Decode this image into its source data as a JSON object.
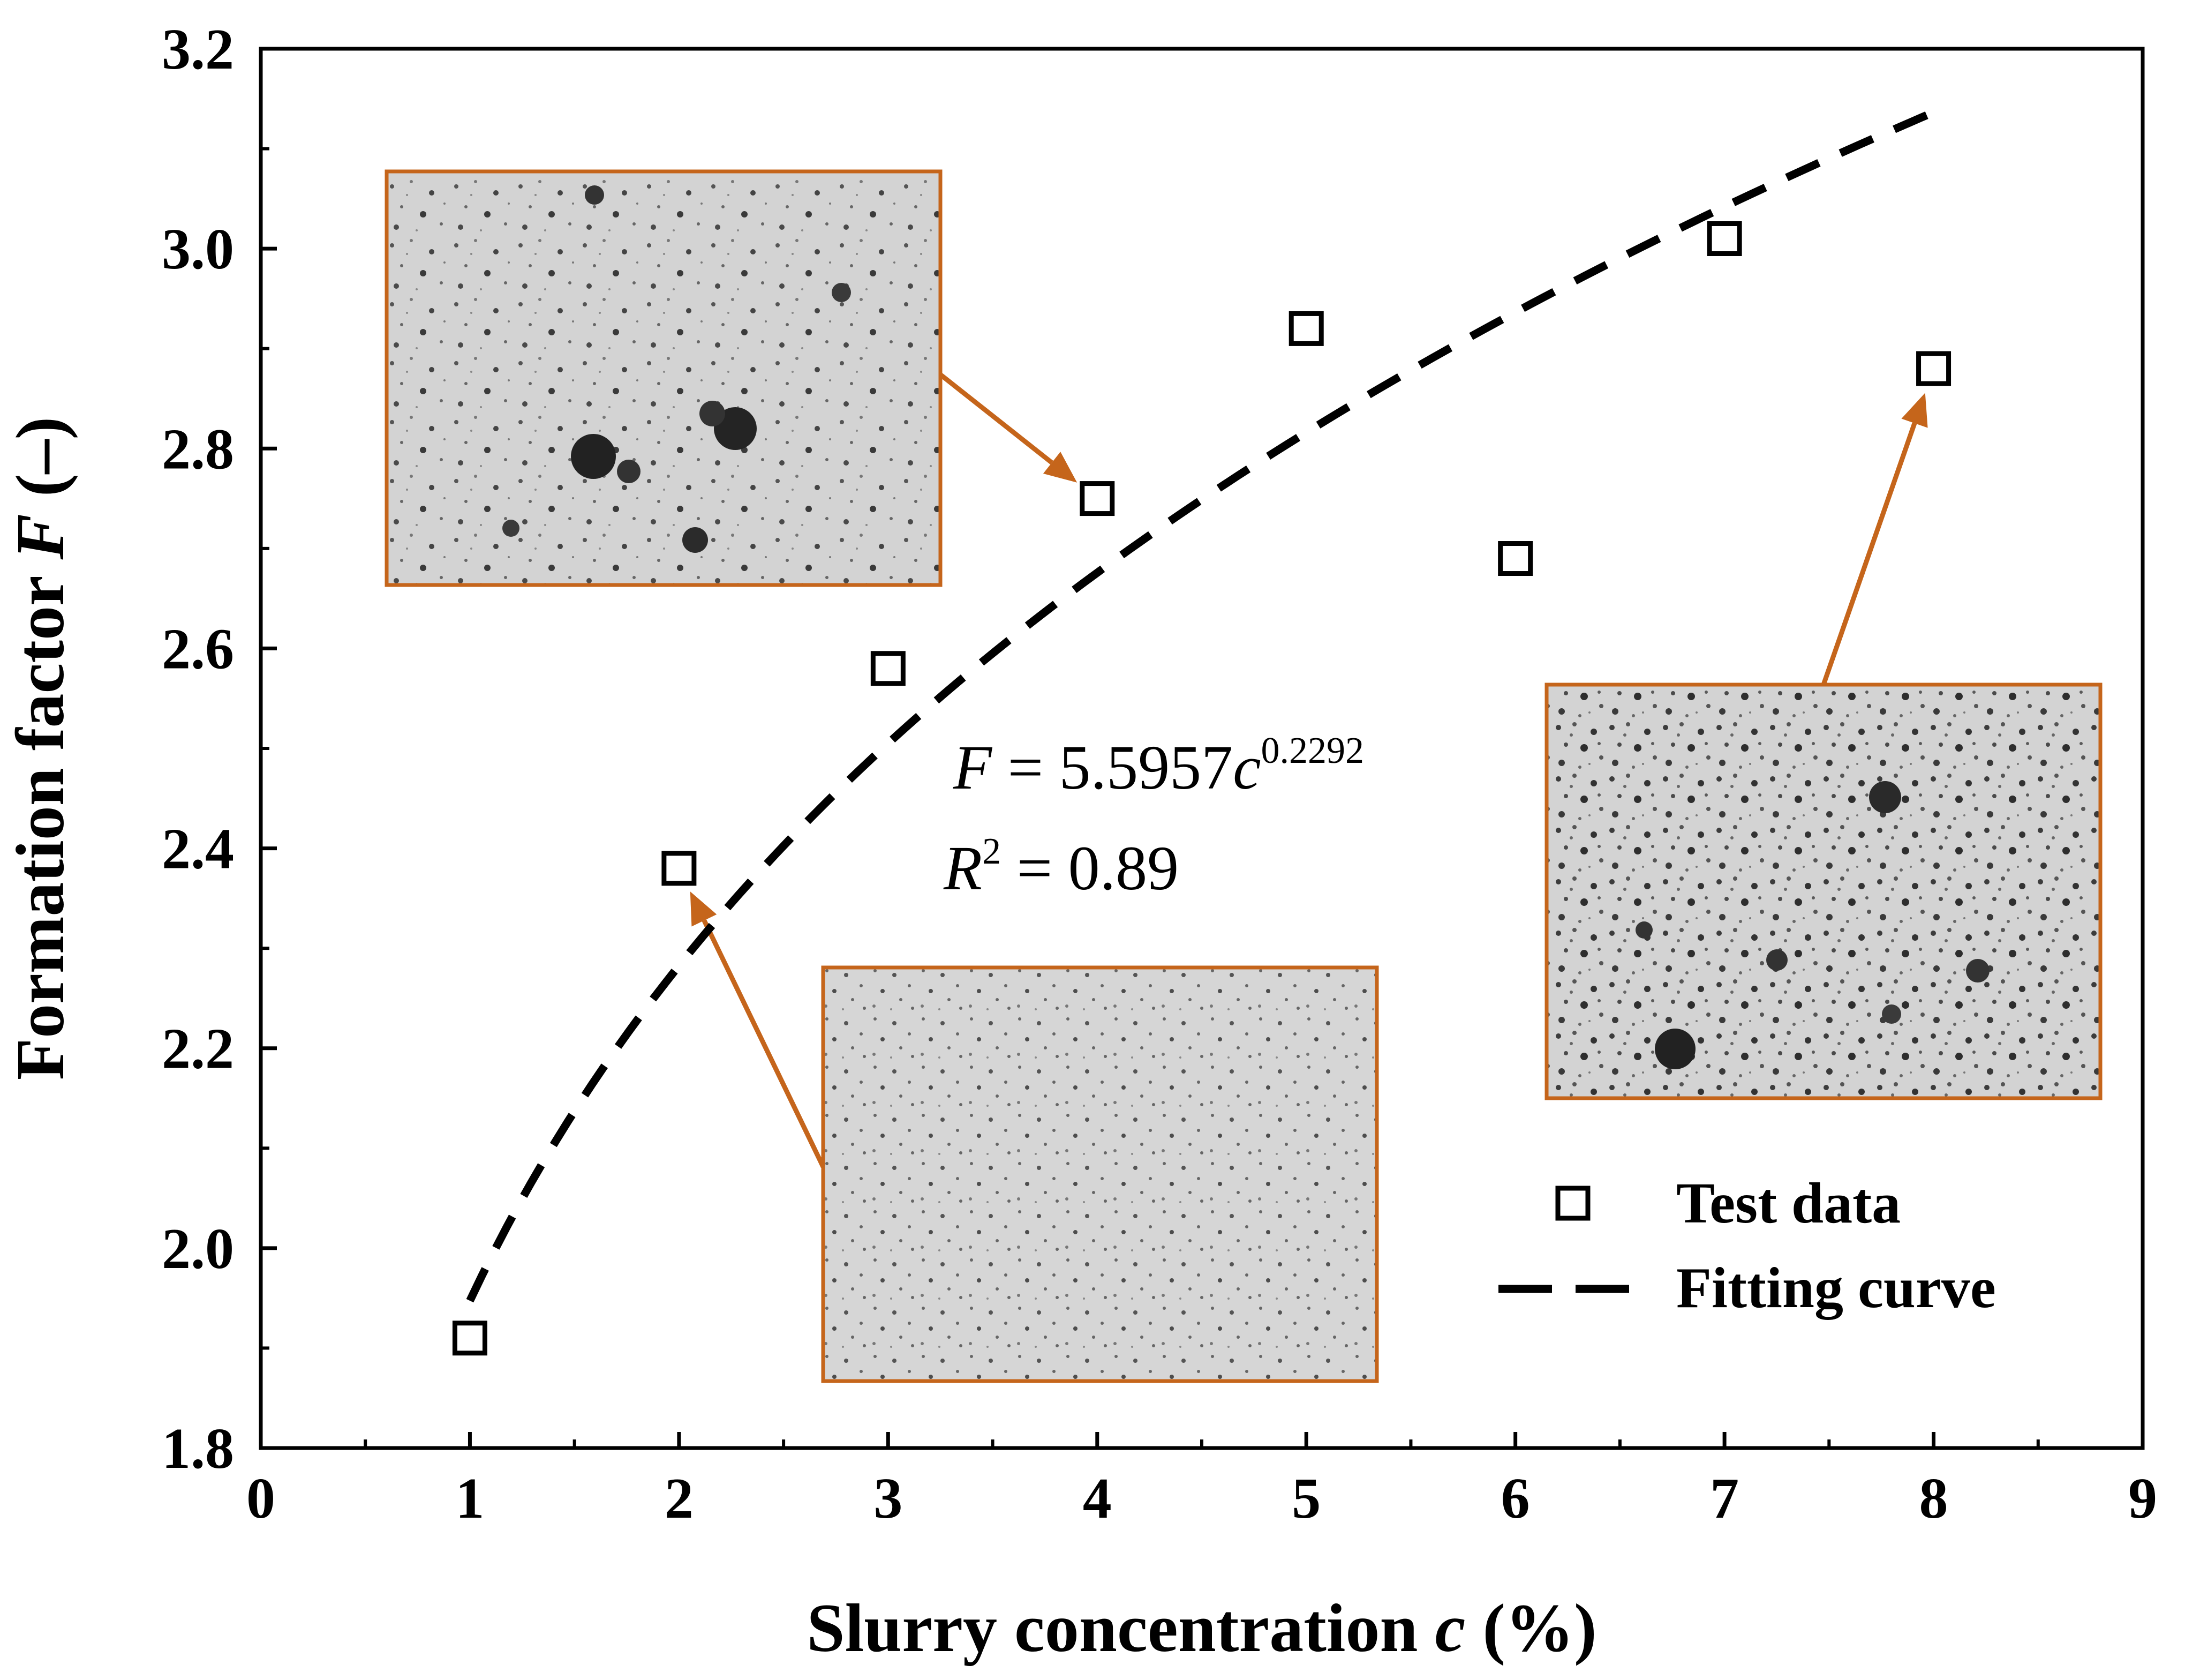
{
  "chart_data": {
    "type": "scatter",
    "xlabel": {
      "main": "Slurry concentration ",
      "var": "c",
      "unit": " (%)"
    },
    "ylabel": {
      "main": "Formation factor ",
      "var": "F",
      "unit": " (–)"
    },
    "xlim": [
      0,
      9
    ],
    "ylim": [
      1.8,
      3.2
    ],
    "x_ticks": [
      "0",
      "1",
      "2",
      "3",
      "4",
      "5",
      "6",
      "7",
      "8",
      "9"
    ],
    "y_ticks": [
      "1.8",
      "2.0",
      "2.2",
      "2.4",
      "2.6",
      "2.8",
      "3.0",
      "3.2"
    ],
    "series": [
      {
        "name": "Test data",
        "marker": "open-square",
        "x": [
          1,
          2,
          3,
          4,
          5,
          6,
          7,
          8
        ],
        "y": [
          1.91,
          2.38,
          2.58,
          2.75,
          2.92,
          2.69,
          3.01,
          2.88
        ]
      },
      {
        "name": "Fitting curve",
        "style": "dashed-line",
        "model": {
          "a": 5.5957,
          "b": 0.2292
        },
        "x_range": [
          1,
          8
        ]
      }
    ],
    "annotation": {
      "eq_lhs": "F",
      "eq_mid": " = 5.5957",
      "eq_var": "c",
      "eq_exp": "0.2292",
      "r_var": "R",
      "r_exp": "2",
      "r_rhs": " = 0.89"
    },
    "micrograph_insets": [
      {
        "points_to": {
          "x": 4,
          "y": 2.75
        }
      },
      {
        "points_to": {
          "x": 2,
          "y": 2.38
        }
      },
      {
        "points_to": {
          "x": 8,
          "y": 2.88
        }
      }
    ],
    "legend_position": "bottom-right",
    "grid": false,
    "colors": {
      "axis": "#000000",
      "inset_border": "#c5651b",
      "arrow": "#c5651b",
      "inset_fill": "#d3d3d3"
    }
  }
}
